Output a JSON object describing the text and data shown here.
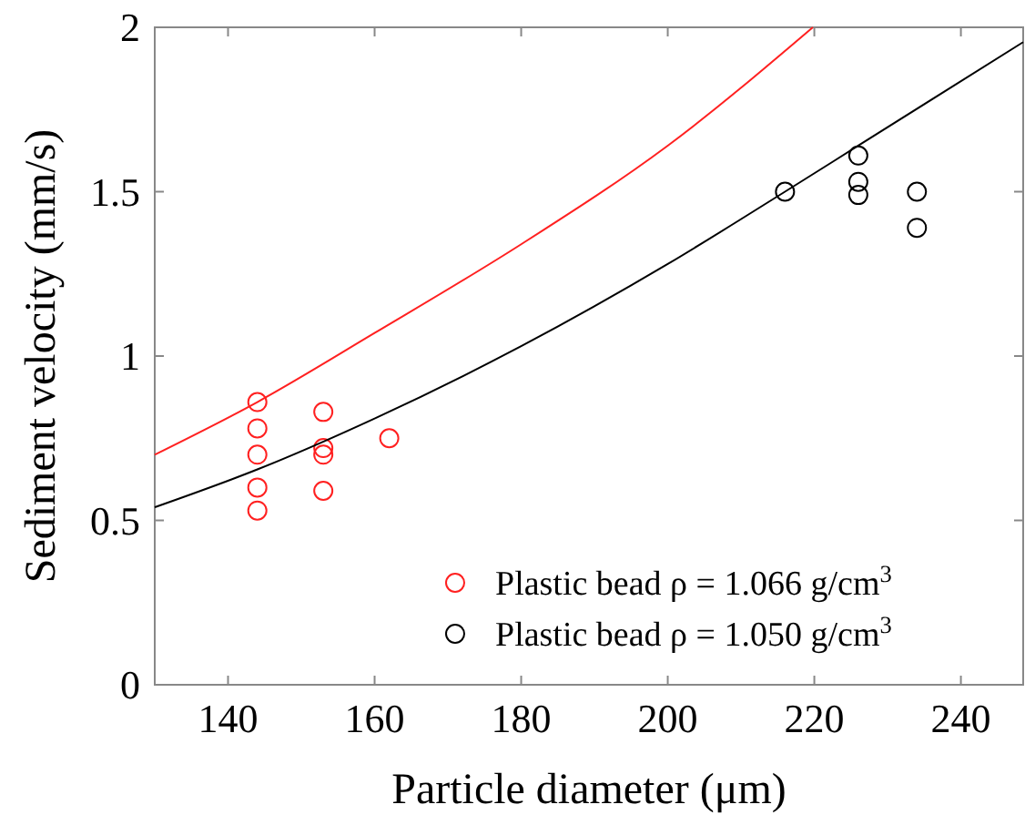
{
  "chart_data": {
    "type": "scatter",
    "xlabel": "Particle diameter (μm)",
    "ylabel": "Sediment velocity (mm/s)",
    "xlim": [
      130,
      248.5
    ],
    "ylim": [
      0,
      2
    ],
    "xticks": [
      140,
      160,
      180,
      200,
      220,
      240
    ],
    "yticks": [
      0,
      0.5,
      1,
      1.5,
      2
    ],
    "grid": false,
    "legend": "bottom right",
    "marker": "circle",
    "series": [
      {
        "name": "Plastic bead ρ = 1.066 g/cm$^{3}$",
        "color": "#ff2020",
        "x": [
          144,
          144,
          144,
          144,
          144,
          153,
          153,
          153,
          153,
          162
        ],
        "values": [
          0.86,
          0.78,
          0.7,
          0.6,
          0.53,
          0.83,
          0.72,
          0.7,
          0.59,
          0.75
        ]
      },
      {
        "name": "Plastic bead ρ = 1.050 g/cm$^{3}$",
        "color": "#000000",
        "x": [
          216,
          226,
          226,
          226,
          234,
          234
        ],
        "values": [
          1.5,
          1.61,
          1.53,
          1.49,
          1.5,
          1.39
        ]
      },
      {
        "color": "#ff2020",
        "type": "line",
        "marker": "none",
        "x": [
          130,
          144,
          160,
          180,
          200,
          219.8
        ],
        "values": [
          0.7,
          0.86,
          1.07,
          1.34,
          1.64,
          2
        ]
      },
      {
        "color": "#000000",
        "type": "line",
        "marker": "none",
        "x": [
          130,
          144,
          160,
          180,
          200,
          216,
          226,
          248.5
        ],
        "values": [
          0.54,
          0.655,
          0.81,
          1.03,
          1.28,
          1.5,
          1.64,
          1.955
        ]
      }
    ]
  }
}
